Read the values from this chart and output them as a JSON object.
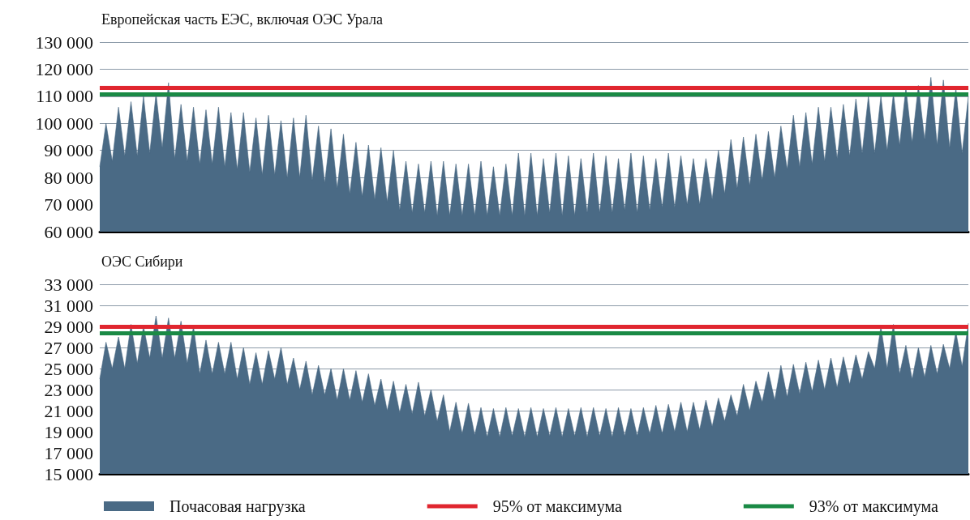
{
  "chart_data": [
    {
      "type": "area",
      "title": "Европейская часть ЕЭС, включая ОЭС Урала",
      "categories": [
        null,
        null,
        null,
        null,
        null,
        null,
        null,
        null,
        null,
        null,
        null,
        null,
        null,
        null,
        null,
        null,
        null,
        null,
        null,
        null,
        null,
        null,
        null,
        null,
        null,
        null,
        null,
        null,
        null,
        null,
        null,
        null,
        null,
        null,
        null,
        null,
        null,
        null,
        null,
        null,
        null,
        null,
        null,
        null,
        null,
        null,
        null,
        null,
        null,
        null,
        null,
        null,
        null,
        null,
        null,
        null,
        null,
        null,
        null,
        null,
        null,
        null,
        null,
        null,
        null,
        null,
        null,
        null,
        null,
        null,
        null,
        null,
        null,
        null,
        null,
        null,
        null,
        null,
        null,
        null,
        null,
        null,
        null,
        null,
        null,
        null,
        null,
        null,
        null,
        null,
        null,
        null,
        null,
        null,
        null,
        null,
        null,
        null,
        null,
        null,
        null,
        null,
        null,
        null,
        null,
        null,
        null,
        null,
        null,
        null,
        null,
        null,
        null,
        null,
        null,
        null,
        null,
        null,
        null,
        null,
        null,
        null,
        null,
        null,
        null,
        null,
        null,
        null,
        null,
        null,
        null,
        null,
        null,
        null,
        null,
        null,
        null,
        null,
        null,
        null
      ],
      "series": [
        {
          "color": "#4a6a85",
          "values": [
            84000,
            100000,
            86000,
            106000,
            88000,
            108000,
            88000,
            110000,
            89000,
            111000,
            91000,
            115000,
            87000,
            107000,
            86000,
            106000,
            85000,
            105000,
            85000,
            106000,
            84000,
            104000,
            83000,
            104000,
            82000,
            102000,
            81000,
            103000,
            81000,
            101000,
            80000,
            102000,
            80000,
            103000,
            79000,
            99000,
            78000,
            98000,
            76000,
            96000,
            74000,
            93000,
            73000,
            92000,
            72000,
            91000,
            71000,
            90000,
            68000,
            86000,
            67000,
            85000,
            67000,
            86000,
            66000,
            86000,
            66000,
            85000,
            66000,
            85000,
            66000,
            86000,
            66000,
            84000,
            66000,
            85000,
            66000,
            89000,
            66000,
            89000,
            66000,
            87000,
            67000,
            89000,
            66000,
            88000,
            66000,
            87000,
            67000,
            89000,
            67000,
            88000,
            67000,
            87000,
            68000,
            89000,
            67000,
            88000,
            68000,
            87000,
            69000,
            89000,
            69000,
            88000,
            70000,
            87000,
            70000,
            87000,
            72000,
            90000,
            74000,
            94000,
            76000,
            95000,
            77000,
            96000,
            79000,
            97000,
            80000,
            99000,
            83000,
            103000,
            84000,
            104000,
            85000,
            106000,
            86000,
            106000,
            87000,
            107000,
            88000,
            109000,
            89000,
            110000,
            89000,
            110000,
            90000,
            111000,
            92000,
            113000,
            93000,
            114000,
            94000,
            117000,
            92000,
            116000,
            91000,
            113000,
            89000,
            110000
          ]
        }
      ],
      "ylim": [
        60000,
        130000
      ],
      "yticks": [
        {
          "value": 60000,
          "label": "60 000"
        },
        {
          "value": 70000,
          "label": "70 000"
        },
        {
          "value": 80000,
          "label": "80 000"
        },
        {
          "value": 90000,
          "label": "90 000"
        },
        {
          "value": 100000,
          "label": "100 000"
        },
        {
          "value": 110000,
          "label": "110 000"
        },
        {
          "value": 120000,
          "label": "120 000"
        },
        {
          "value": 130000,
          "label": "130 000"
        }
      ],
      "grid": "y",
      "tick_labels": "y",
      "legend": false,
      "ref_lines": [
        {
          "axis": "y",
          "value": 113200,
          "color": "#e0262f"
        },
        {
          "axis": "y",
          "value": 110900,
          "color": "#1a8a45"
        }
      ]
    },
    {
      "type": "area",
      "title": "ОЭС Сибири",
      "categories": [
        null,
        null,
        null,
        null,
        null,
        null,
        null,
        null,
        null,
        null,
        null,
        null,
        null,
        null,
        null,
        null,
        null,
        null,
        null,
        null,
        null,
        null,
        null,
        null,
        null,
        null,
        null,
        null,
        null,
        null,
        null,
        null,
        null,
        null,
        null,
        null,
        null,
        null,
        null,
        null,
        null,
        null,
        null,
        null,
        null,
        null,
        null,
        null,
        null,
        null,
        null,
        null,
        null,
        null,
        null,
        null,
        null,
        null,
        null,
        null,
        null,
        null,
        null,
        null,
        null,
        null,
        null,
        null,
        null,
        null,
        null,
        null,
        null,
        null,
        null,
        null,
        null,
        null,
        null,
        null,
        null,
        null,
        null,
        null,
        null,
        null,
        null,
        null,
        null,
        null,
        null,
        null,
        null,
        null,
        null,
        null,
        null,
        null,
        null,
        null,
        null,
        null,
        null,
        null,
        null,
        null,
        null,
        null,
        null,
        null,
        null,
        null,
        null,
        null,
        null,
        null,
        null,
        null,
        null,
        null,
        null,
        null,
        null,
        null,
        null,
        null,
        null,
        null,
        null,
        null,
        null,
        null,
        null,
        null,
        null,
        null,
        null,
        null,
        null,
        null
      ],
      "series": [
        {
          "name": "Почасовая нагрузка",
          "color": "#4a6a85",
          "values": [
            24000,
            27500,
            25000,
            28000,
            25000,
            29200,
            25500,
            29000,
            26000,
            30000,
            26000,
            29800,
            26000,
            29500,
            25500,
            29000,
            24500,
            27700,
            24500,
            27500,
            24500,
            27500,
            24000,
            27000,
            23500,
            26500,
            23500,
            26700,
            24000,
            27000,
            23500,
            26000,
            23000,
            25700,
            22500,
            25300,
            22500,
            25000,
            22000,
            25000,
            22000,
            24800,
            21800,
            24500,
            21500,
            24000,
            21000,
            23800,
            20800,
            23500,
            20700,
            23700,
            20500,
            23000,
            20000,
            22500,
            19000,
            21800,
            18800,
            21700,
            18700,
            21300,
            18500,
            21200,
            18500,
            21300,
            18600,
            21200,
            18500,
            21300,
            18500,
            21200,
            18600,
            21300,
            18500,
            21200,
            18600,
            21300,
            18500,
            21300,
            18600,
            21200,
            18500,
            21300,
            18600,
            21200,
            18600,
            21300,
            18800,
            21500,
            18800,
            21600,
            19000,
            21800,
            19000,
            21800,
            19200,
            22000,
            19500,
            22200,
            20000,
            22500,
            20500,
            23500,
            21000,
            23800,
            21800,
            24700,
            22000,
            25300,
            22300,
            25400,
            22600,
            25600,
            22800,
            25800,
            23000,
            26000,
            23200,
            26100,
            23500,
            26300,
            24000,
            26600,
            25000,
            29000,
            25000,
            29200,
            24500,
            27200,
            24000,
            27000,
            24200,
            27200,
            24500,
            27300,
            25000,
            28500,
            25200,
            29300
          ]
        }
      ],
      "ylim": [
        15000,
        33000
      ],
      "yticks": [
        {
          "value": 15000,
          "label": "15 000"
        },
        {
          "value": 17000,
          "label": "17 000"
        },
        {
          "value": 19000,
          "label": "19 000"
        },
        {
          "value": 21000,
          "label": "21 000"
        },
        {
          "value": 23000,
          "label": "23 000"
        },
        {
          "value": 25000,
          "label": "25 000"
        },
        {
          "value": 27000,
          "label": "27 000"
        },
        {
          "value": 29000,
          "label": "29 000"
        },
        {
          "value": 31000,
          "label": "31 000"
        },
        {
          "value": 33000,
          "label": "33 000"
        }
      ],
      "grid": "y",
      "tick_labels": "y",
      "legend": "bottom",
      "ref_lines": [
        {
          "axis": "y",
          "value": 29000,
          "label": "95% от максимума",
          "color": "#e0262f"
        },
        {
          "axis": "y",
          "value": 28400,
          "label": "93% от максимума",
          "color": "#1a8a45"
        }
      ]
    }
  ]
}
